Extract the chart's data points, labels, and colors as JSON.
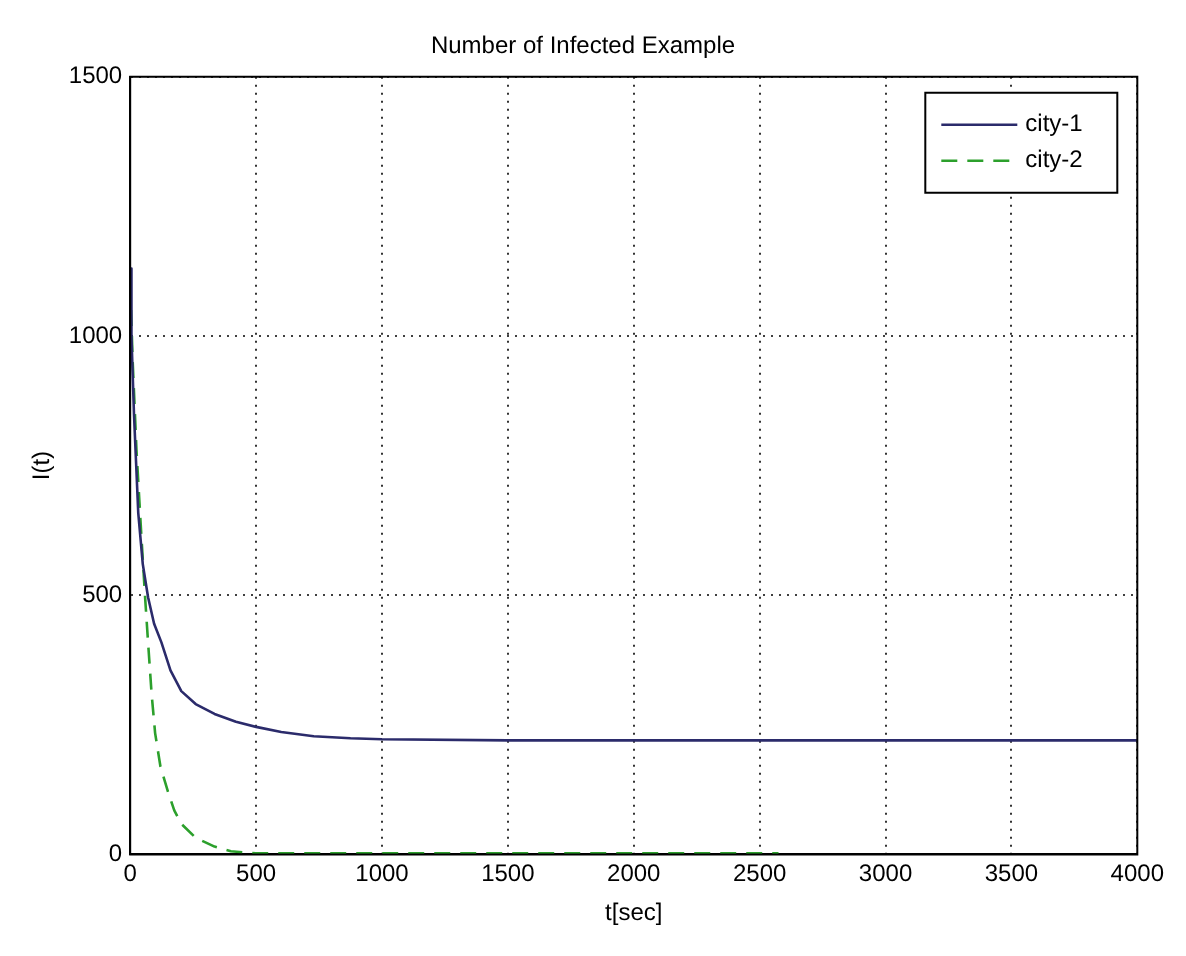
{
  "chart_data": {
    "type": "line",
    "title": "Number of Infected Example",
    "xlabel": "t[sec]",
    "ylabel": "I(t)",
    "xlim": [
      0,
      4000
    ],
    "ylim": [
      0,
      1500
    ],
    "xticks": [
      0,
      500,
      1000,
      1500,
      2000,
      2500,
      3000,
      3500,
      4000
    ],
    "yticks": [
      0,
      500,
      1000,
      1500
    ],
    "grid": true,
    "legend": "top right",
    "marker": "none",
    "series": [
      {
        "name": "city-1",
        "color": "#2b2b6b",
        "line_style": "solid",
        "x": [
          0,
          5,
          15,
          32,
          50,
          71,
          95,
          124,
          160,
          203,
          260,
          335,
          420,
          500,
          600,
          729,
          875,
          1000,
          1500,
          2000,
          3000,
          4000
        ],
        "values": [
          1130,
          1000,
          850,
          659,
          560,
          496,
          445,
          409,
          355,
          315,
          290,
          271,
          256,
          246,
          236,
          228,
          224,
          222,
          220,
          220,
          220,
          220
        ]
      },
      {
        "name": "city-2",
        "color": "#2ca02c",
        "line_style": "dashed",
        "x": [
          0,
          10,
          25,
          45,
          60,
          71,
          85,
          99,
          120,
          150,
          175,
          203,
          260,
          335,
          400,
          500,
          700,
          1000,
          1500,
          2000,
          2575
        ],
        "values": [
          1100,
          950,
          780,
          609,
          490,
          409,
          310,
          234,
          170,
          121,
          85,
          59,
          32,
          15,
          6,
          2,
          2,
          2,
          2,
          2,
          2
        ]
      }
    ]
  }
}
